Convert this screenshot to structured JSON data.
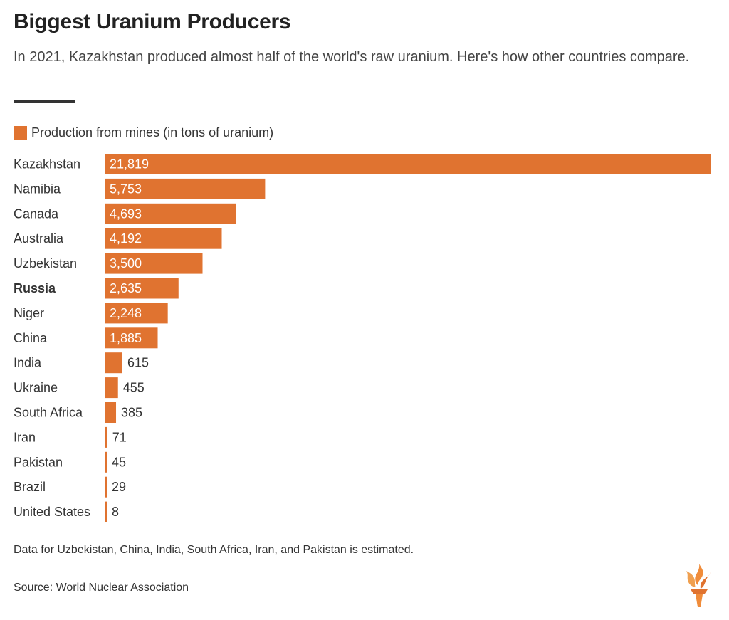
{
  "header": {
    "title": "Biggest Uranium Producers",
    "subtitle": "In 2021, Kazakhstan produced almost half of the world's raw uranium. Here's how other countries compare."
  },
  "legend": {
    "label": "Production from mines (in tons of uranium)"
  },
  "colors": {
    "bar": "#e07330",
    "text": "#333333",
    "value_inside": "#ffffff"
  },
  "chart_data": {
    "type": "bar",
    "orientation": "horizontal",
    "categories": [
      "Kazakhstan",
      "Namibia",
      "Canada",
      "Australia",
      "Uzbekistan",
      "Russia",
      "Niger",
      "China",
      "India",
      "Ukraine",
      "South Africa",
      "Iran",
      "Pakistan",
      "Brazil",
      "United States"
    ],
    "values": [
      21819,
      5753,
      4693,
      4192,
      3500,
      2635,
      2248,
      1885,
      615,
      455,
      385,
      71,
      45,
      29,
      8
    ],
    "value_labels": [
      "21,819",
      "5,753",
      "4,693",
      "4,192",
      "3,500",
      "2,635",
      "2,248",
      "1,885",
      "615",
      "455",
      "385",
      "71",
      "45",
      "29",
      "8"
    ],
    "highlighted_category": "Russia",
    "xlim": [
      0,
      21819
    ],
    "grid": false,
    "legend_position": "top-left"
  },
  "footer": {
    "note": "Data for Uzbekistan, China, India, South Africa, Iran, and Pakistan is estimated.",
    "source": "Source: World Nuclear Association"
  },
  "logo": {
    "icon": "torch-logo-icon"
  }
}
